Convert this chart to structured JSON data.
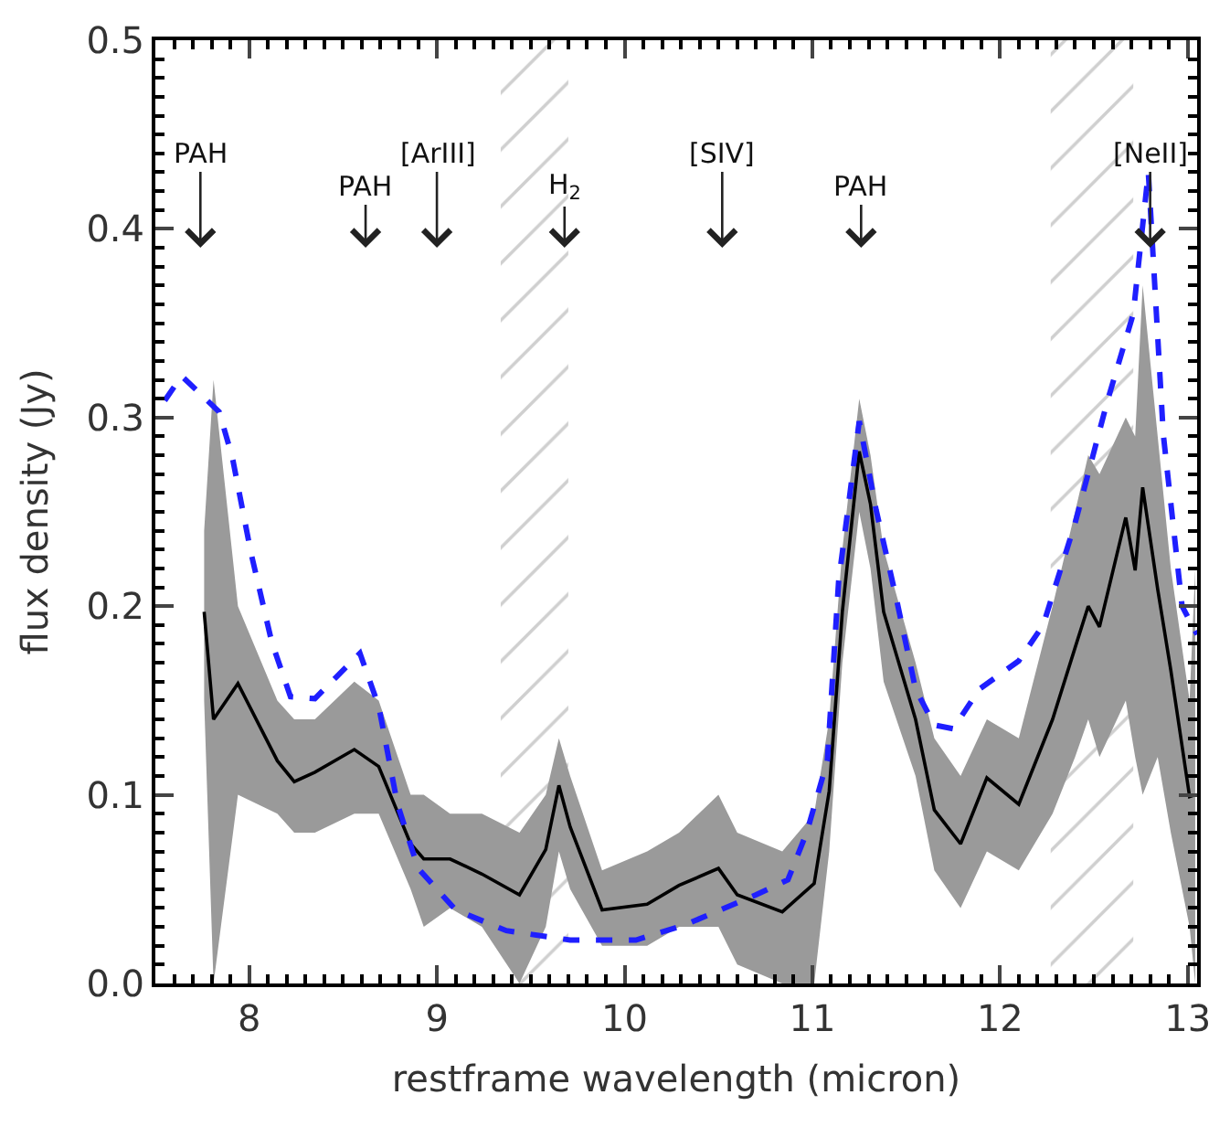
{
  "chart_data": {
    "type": "line",
    "xlabel": "restframe wavelength (micron)",
    "ylabel": "flux density (Jy)",
    "xlim": [
      7.5,
      13.05
    ],
    "xticks": [
      8,
      9,
      10,
      11,
      12,
      13
    ],
    "ylim": [
      0,
      0.5
    ],
    "yticks": [
      {
        "value": 0,
        "label": "0.0"
      },
      {
        "value": 0.1,
        "label": "0.1"
      },
      {
        "value": 0.2,
        "label": "0.2"
      },
      {
        "value": 0.3,
        "label": "0.3"
      },
      {
        "value": 0.4,
        "label": "0.4"
      },
      {
        "value": 0.5,
        "label": "0.5"
      }
    ],
    "series": [
      {
        "color": "#000000",
        "line_style": "solid",
        "x": [
          7.76,
          7.81,
          7.94,
          8.15,
          8.24,
          8.35,
          8.56,
          8.69,
          8.86,
          8.93,
          9.07,
          9.24,
          9.44,
          9.58,
          9.65,
          9.71,
          9.88,
          10.12,
          10.29,
          10.5,
          10.6,
          10.84,
          11.01,
          11.09,
          11.16,
          11.25,
          11.31,
          11.38,
          11.55,
          11.65,
          11.79,
          11.93,
          12.1,
          12.28,
          12.4,
          12.47,
          12.53,
          12.67,
          12.72,
          12.76,
          12.84,
          12.91,
          13.01,
          13.04
        ],
        "values": [
          0.197,
          0.14,
          0.159,
          0.118,
          0.107,
          0.112,
          0.124,
          0.115,
          0.074,
          0.066,
          0.066,
          0.058,
          0.047,
          0.071,
          0.105,
          0.083,
          0.039,
          0.042,
          0.052,
          0.061,
          0.047,
          0.038,
          0.053,
          0.102,
          0.197,
          0.282,
          0.254,
          0.197,
          0.14,
          0.092,
          0.074,
          0.109,
          0.095,
          0.14,
          0.178,
          0.2,
          0.189,
          0.247,
          0.219,
          0.263,
          0.209,
          0.166,
          0.099,
          0.1
        ],
        "lower": [
          0.15,
          0.0,
          0.1,
          0.09,
          0.08,
          0.08,
          0.09,
          0.09,
          0.05,
          0.03,
          0.04,
          0.03,
          0.0,
          0.03,
          0.07,
          0.05,
          0.02,
          0.02,
          0.03,
          0.03,
          0.01,
          0.0,
          0.0,
          0.07,
          0.17,
          0.25,
          0.22,
          0.16,
          0.11,
          0.06,
          0.04,
          0.07,
          0.06,
          0.09,
          0.12,
          0.14,
          0.12,
          0.15,
          0.12,
          0.1,
          0.12,
          0.08,
          0.03,
          0.0
        ],
        "upper": [
          0.24,
          0.32,
          0.2,
          0.15,
          0.14,
          0.14,
          0.16,
          0.15,
          0.1,
          0.1,
          0.09,
          0.09,
          0.08,
          0.1,
          0.13,
          0.11,
          0.06,
          0.07,
          0.08,
          0.1,
          0.08,
          0.07,
          0.09,
          0.14,
          0.23,
          0.31,
          0.28,
          0.23,
          0.17,
          0.13,
          0.11,
          0.14,
          0.13,
          0.2,
          0.25,
          0.28,
          0.27,
          0.3,
          0.29,
          0.37,
          0.29,
          0.22,
          0.15,
          0.22
        ]
      },
      {
        "color": "#1f1fff",
        "line_style": "dashed",
        "x": [
          7.55,
          7.64,
          7.84,
          7.91,
          8.01,
          8.12,
          8.22,
          8.35,
          8.46,
          8.59,
          8.69,
          8.79,
          8.9,
          9.1,
          9.37,
          9.71,
          10.06,
          10.32,
          10.7,
          10.87,
          10.97,
          11.08,
          11.14,
          11.25,
          11.34,
          11.45,
          11.55,
          11.65,
          11.75,
          11.89,
          12.1,
          12.23,
          12.4,
          12.57,
          12.71,
          12.79,
          12.87,
          12.97,
          13.05
        ],
        "values": [
          0.309,
          0.322,
          0.303,
          0.279,
          0.228,
          0.181,
          0.152,
          0.151,
          0.162,
          0.175,
          0.147,
          0.095,
          0.061,
          0.039,
          0.028,
          0.023,
          0.023,
          0.031,
          0.047,
          0.055,
          0.08,
          0.118,
          0.213,
          0.298,
          0.251,
          0.203,
          0.156,
          0.137,
          0.135,
          0.156,
          0.171,
          0.19,
          0.244,
          0.308,
          0.355,
          0.43,
          0.291,
          0.2,
          0.185
        ]
      }
    ],
    "bands": [
      {
        "axis": "x",
        "from": 9.34,
        "to": 9.7,
        "color": "#a0a0a0"
      },
      {
        "axis": "x",
        "from": 12.27,
        "to": 12.71,
        "color": "#a0a0a0"
      }
    ],
    "ref_lines": [
      {
        "axis": "x",
        "value": 7.74,
        "label": "PAH"
      },
      {
        "axis": "x",
        "value": 8.62,
        "label": "PAH"
      },
      {
        "axis": "x",
        "value": 9.0,
        "label": "[ArIII]"
      },
      {
        "axis": "x",
        "value": 9.68,
        "label": "H$_{2}$"
      },
      {
        "axis": "x",
        "value": 10.52,
        "label": "[SIV]"
      },
      {
        "axis": "x",
        "value": 11.26,
        "label": "PAH"
      },
      {
        "axis": "x",
        "value": 12.8,
        "label": "[NeII]"
      }
    ]
  }
}
